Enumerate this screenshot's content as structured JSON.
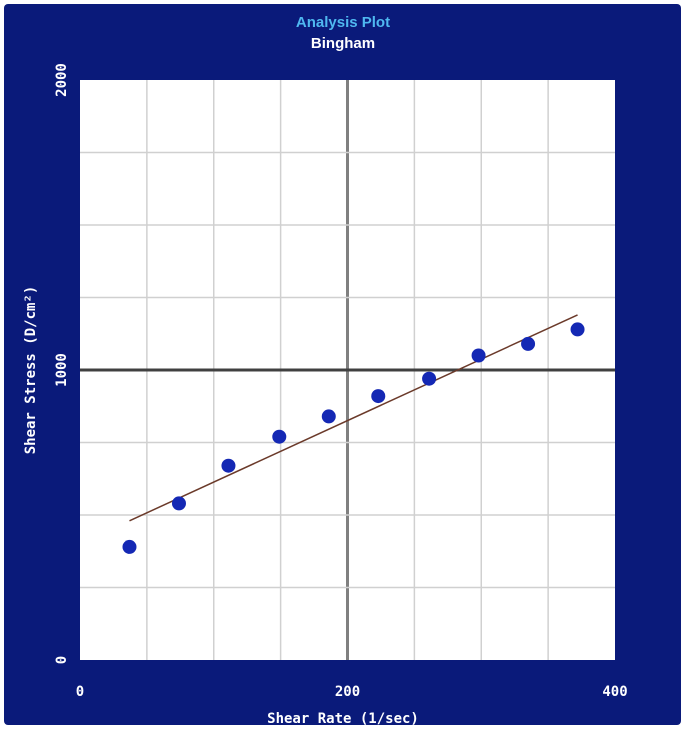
{
  "chart_data": {
    "type": "scatter",
    "title": "Analysis Plot",
    "subtitle": "Bingham",
    "xlabel": "Shear Rate  (1/sec)",
    "ylabel": "Shear Stress  (D/cm²)",
    "xlim": [
      0,
      400
    ],
    "ylim": [
      0,
      2000
    ],
    "x_ticks": [
      "0",
      "200",
      "400"
    ],
    "y_ticks": [
      "0",
      "1000",
      "2000"
    ],
    "grid": true,
    "series": [
      {
        "type": "scatter",
        "x": [
          37,
          74,
          111,
          149,
          186,
          223,
          261,
          298,
          335,
          372
        ],
        "y": [
          390,
          540,
          670,
          770,
          840,
          910,
          970,
          1050,
          1090,
          1140
        ]
      },
      {
        "type": "line",
        "x": [
          37,
          372
        ],
        "y": [
          480,
          1190
        ]
      }
    ],
    "colors": {
      "background": "#0a1a7a",
      "plot_area": "#ffffff",
      "grid": "#d0d0d0",
      "center_lines": "#808080",
      "mid_line": "#404040",
      "points": "#1428b4",
      "fit_line": "#6b3a2a",
      "title": "#4fb8f0"
    }
  }
}
